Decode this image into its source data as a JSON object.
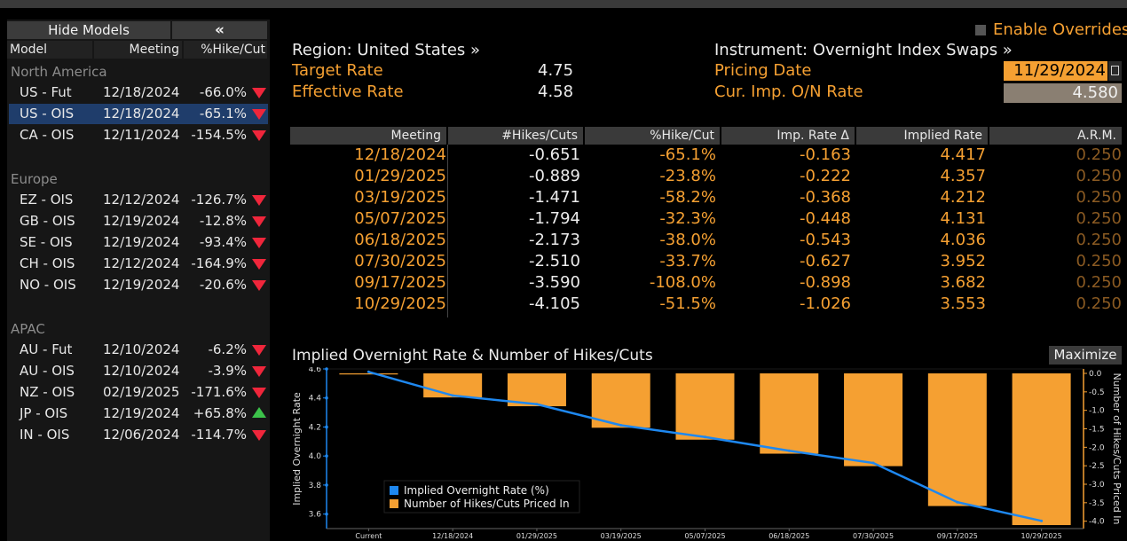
{
  "left_panel": {
    "hide_label": "Hide Models",
    "collapse_label": "«",
    "headers": {
      "model": "Model",
      "meeting": "Meeting",
      "pct": "%Hike/Cut"
    },
    "groups": [
      {
        "name": "North America",
        "rows": [
          {
            "model": "US - Fut",
            "meeting": "12/18/2024",
            "pct": "-66.0%",
            "dir": "down"
          },
          {
            "model": "US - OIS",
            "meeting": "12/18/2024",
            "pct": "-65.1%",
            "dir": "down",
            "selected": true
          },
          {
            "model": "CA - OIS",
            "meeting": "12/11/2024",
            "pct": "-154.5%",
            "dir": "down"
          }
        ]
      },
      {
        "name": "Europe",
        "rows": [
          {
            "model": "EZ - OIS",
            "meeting": "12/12/2024",
            "pct": "-126.7%",
            "dir": "down"
          },
          {
            "model": "GB - OIS",
            "meeting": "12/19/2024",
            "pct": "-12.8%",
            "dir": "down"
          },
          {
            "model": "SE - OIS",
            "meeting": "12/19/2024",
            "pct": "-93.4%",
            "dir": "down"
          },
          {
            "model": "CH - OIS",
            "meeting": "12/12/2024",
            "pct": "-164.9%",
            "dir": "down"
          },
          {
            "model": "NO - OIS",
            "meeting": "12/19/2024",
            "pct": "-20.6%",
            "dir": "down"
          }
        ]
      },
      {
        "name": "APAC",
        "rows": [
          {
            "model": "AU - Fut",
            "meeting": "12/10/2024",
            "pct": "-6.2%",
            "dir": "down"
          },
          {
            "model": "AU - OIS",
            "meeting": "12/10/2024",
            "pct": "-3.9%",
            "dir": "down"
          },
          {
            "model": "NZ - OIS",
            "meeting": "02/19/2025",
            "pct": "-171.6%",
            "dir": "down"
          },
          {
            "model": "JP - OIS",
            "meeting": "12/19/2024",
            "pct": "+65.8%",
            "dir": "up"
          },
          {
            "model": "IN - OIS",
            "meeting": "12/06/2024",
            "pct": "-114.7%",
            "dir": "down"
          }
        ]
      }
    ]
  },
  "header": {
    "enable_overrides": "Enable Overrides",
    "region": "Region: United States »",
    "target_rate_label": "Target Rate",
    "target_rate_value": "4.75",
    "effective_rate_label": "Effective Rate",
    "effective_rate_value": "4.58",
    "instrument": "Instrument: Overnight Index Swaps »",
    "pricing_date_label": "Pricing Date",
    "pricing_date_value": "11/29/2024",
    "cur_rate_label": "Cur. Imp. O/N Rate",
    "cur_rate_value": "4.580"
  },
  "table": {
    "columns": [
      "Meeting",
      "#Hikes/Cuts",
      "%Hike/Cut",
      "Imp. Rate Δ",
      "Implied Rate",
      "A.R.M."
    ],
    "rows": [
      [
        "12/18/2024",
        "-0.651",
        "-65.1%",
        "-0.163",
        "4.417",
        "0.250"
      ],
      [
        "01/29/2025",
        "-0.889",
        "-23.8%",
        "-0.222",
        "4.357",
        "0.250"
      ],
      [
        "03/19/2025",
        "-1.471",
        "-58.2%",
        "-0.368",
        "4.212",
        "0.250"
      ],
      [
        "05/07/2025",
        "-1.794",
        "-32.3%",
        "-0.448",
        "4.131",
        "0.250"
      ],
      [
        "06/18/2025",
        "-2.173",
        "-38.0%",
        "-0.543",
        "4.036",
        "0.250"
      ],
      [
        "07/30/2025",
        "-2.510",
        "-33.7%",
        "-0.627",
        "3.952",
        "0.250"
      ],
      [
        "09/17/2025",
        "-3.590",
        "-108.0%",
        "-0.898",
        "3.682",
        "0.250"
      ],
      [
        "10/29/2025",
        "-4.105",
        "-51.5%",
        "-1.026",
        "3.553",
        "0.250"
      ]
    ]
  },
  "chart_title": "Implied Overnight Rate & Number of Hikes/Cuts",
  "maximize_label": "Maximize",
  "colors": {
    "accent": "#f5a032",
    "line": "#1e88f0",
    "down": "#f0263b",
    "up": "#3cc24a"
  },
  "chart_data": {
    "type": "bar",
    "title": "Implied Overnight Rate & Number of Hikes/Cuts",
    "categories": [
      "Current",
      "12/18/2024",
      "01/29/2025",
      "03/19/2025",
      "05/07/2025",
      "06/18/2025",
      "07/30/2025",
      "09/17/2025",
      "10/29/2025"
    ],
    "series": [
      {
        "name": "Implied Overnight Rate (%)",
        "type": "line",
        "axis": "left",
        "values": [
          4.58,
          4.417,
          4.357,
          4.212,
          4.131,
          4.036,
          3.952,
          3.682,
          3.553
        ]
      },
      {
        "name": "Number of Hikes/Cuts Priced In",
        "type": "bar",
        "axis": "right",
        "values": [
          0,
          -0.651,
          -0.889,
          -1.471,
          -1.794,
          -2.173,
          -2.51,
          -3.59,
          -4.105
        ]
      }
    ],
    "ylabel": "Implied Overnight Rate",
    "y2label": "Number of Hikes/Cuts Priced In",
    "ylim": [
      3.5,
      4.6
    ],
    "y2lim": [
      -4.2,
      0.12
    ],
    "yticks": [
      "4.6",
      "4.4",
      "4.2",
      "4.0",
      "3.8",
      "3.6"
    ],
    "y2ticks": [
      "0.0",
      "-0.5",
      "-1.0",
      "-1.5",
      "-2.0",
      "-2.5",
      "-3.0",
      "-3.5",
      "-4.0"
    ],
    "legend": [
      "Implied Overnight Rate (%)",
      "Number of Hikes/Cuts Priced In"
    ]
  }
}
